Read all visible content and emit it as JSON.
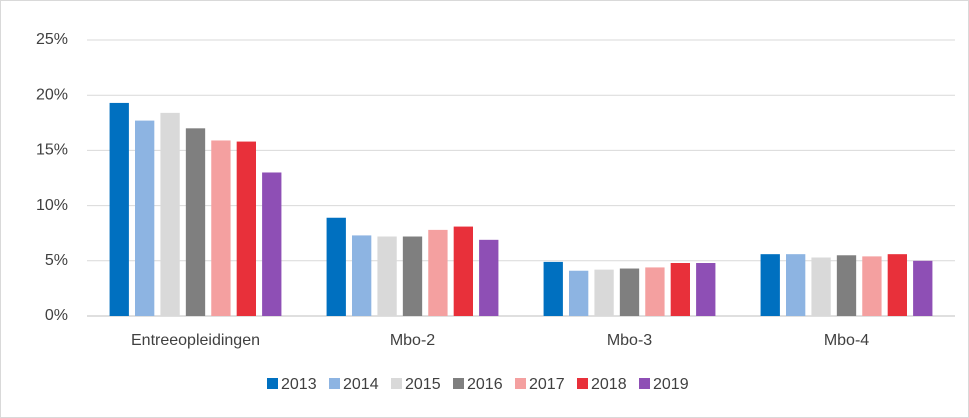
{
  "chart_data": {
    "type": "bar",
    "categories": [
      "Entreeopleidingen",
      "Mbo-2",
      "Mbo-3",
      "Mbo-4"
    ],
    "series": [
      {
        "name": "2013",
        "color": "#0070c0",
        "values": [
          19.3,
          8.9,
          4.9,
          5.6
        ]
      },
      {
        "name": "2014",
        "color": "#8db4e2",
        "values": [
          17.7,
          7.3,
          4.1,
          5.6
        ]
      },
      {
        "name": "2015",
        "color": "#d9d9d9",
        "values": [
          18.4,
          7.2,
          4.2,
          5.3
        ]
      },
      {
        "name": "2016",
        "color": "#7f7f7f",
        "values": [
          17.0,
          7.2,
          4.3,
          5.5
        ]
      },
      {
        "name": "2017",
        "color": "#f4a0a0",
        "values": [
          15.9,
          7.8,
          4.4,
          5.4
        ]
      },
      {
        "name": "2018",
        "color": "#e8303a",
        "values": [
          15.8,
          8.1,
          4.8,
          5.6
        ]
      },
      {
        "name": "2019",
        "color": "#8e4fb5",
        "values": [
          13.0,
          6.9,
          4.8,
          5.0
        ]
      }
    ],
    "ylim": [
      0,
      25
    ],
    "yticks": [
      {
        "value": 0,
        "label": "0%"
      },
      {
        "value": 5,
        "label": "5%"
      },
      {
        "value": 10,
        "label": "10%"
      },
      {
        "value": 15,
        "label": "15%"
      },
      {
        "value": 20,
        "label": "20%"
      },
      {
        "value": 25,
        "label": "25%"
      }
    ],
    "grid": true,
    "legend": "bottom"
  }
}
